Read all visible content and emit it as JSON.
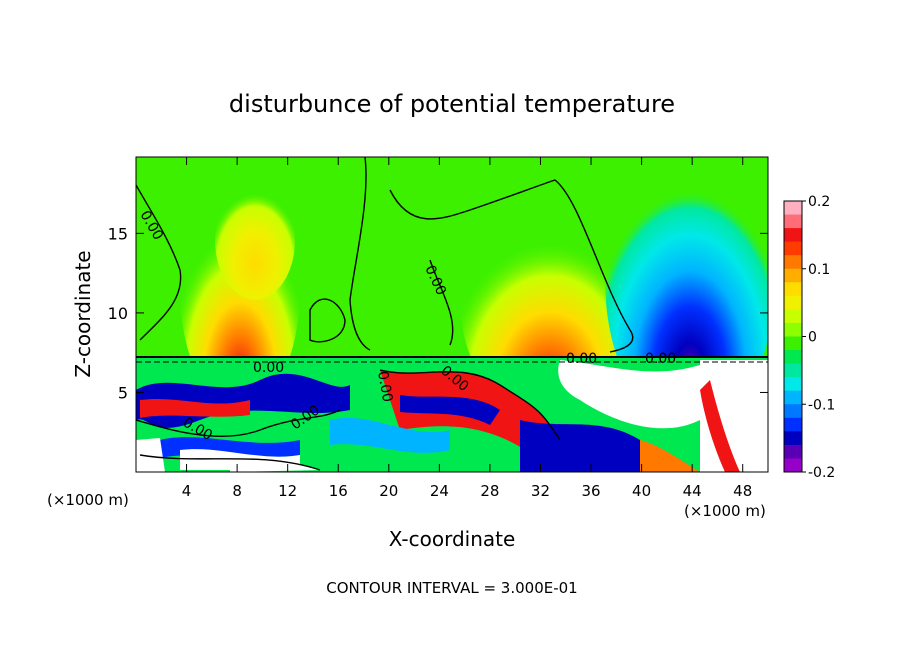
{
  "chart_data": {
    "type": "heatmap",
    "title": "disturbunce of potential temperature",
    "xlabel": "X-coordinate",
    "ylabel": "Z-coordinate",
    "x_unit_left": "(×1000 m)",
    "x_unit_right": "(×1000 m)",
    "x_ticks": [
      4,
      8,
      12,
      16,
      20,
      24,
      28,
      32,
      36,
      40,
      44,
      48
    ],
    "y_ticks": [
      5,
      10,
      15
    ],
    "xlim": [
      0,
      50
    ],
    "ylim": [
      0,
      19.8
    ],
    "colorbar": {
      "ticks": [
        "0.2",
        "0.1",
        "0",
        "-0.1",
        "-0.2"
      ],
      "range": [
        -0.2,
        0.2
      ],
      "colors": [
        "#ffb0c0",
        "#ff6e78",
        "#f01414",
        "#ff3c00",
        "#ff7800",
        "#ffae00",
        "#ffdc00",
        "#f0f000",
        "#c8ff00",
        "#8cff00",
        "#3cf000",
        "#00e850",
        "#00e8a0",
        "#00e8e8",
        "#00b4ff",
        "#0078ff",
        "#0030ff",
        "#0000c0",
        "#5a00b4",
        "#9600c8"
      ]
    },
    "contour_labels": [
      "0.00",
      "0.00",
      "0.00",
      "0.00",
      "0.00",
      "0.00",
      "0.00",
      "0.00",
      "0.00"
    ],
    "footer": "CONTOUR INTERVAL = 3.000E-01"
  }
}
